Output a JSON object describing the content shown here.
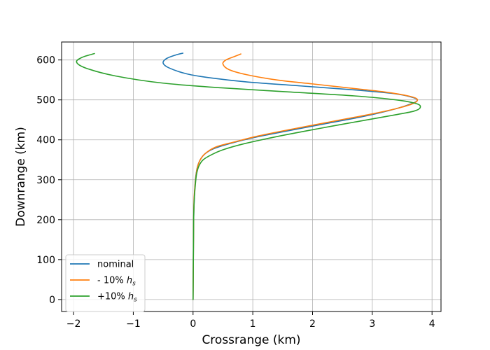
{
  "chart_data": {
    "type": "line",
    "xlabel": "Crossrange (km)",
    "ylabel": "Downrange (km)",
    "xlim": [
      -2.2,
      4.15
    ],
    "ylim": [
      -30,
      645
    ],
    "xticks": [
      -2,
      -1,
      0,
      1,
      2,
      3,
      4
    ],
    "yticks": [
      0,
      100,
      200,
      300,
      400,
      500,
      600
    ],
    "grid": true,
    "legend_position": "lower-left",
    "series": [
      {
        "name": "nominal",
        "label_prefix": "nominal",
        "label_subscript": "",
        "color": "#1f77b4",
        "x": [
          0,
          0.005,
          0.01,
          0.02,
          0.04,
          0.07,
          0.12,
          0.2,
          0.35,
          0.6,
          1.0,
          1.5,
          2.2,
          2.9,
          3.4,
          3.65,
          3.75,
          3.7,
          3.4,
          2.7,
          1.8,
          0.9,
          0.3,
          -0.1,
          -0.4,
          -0.5,
          -0.45,
          -0.3,
          -0.17
        ],
        "y": [
          0,
          100,
          200,
          250,
          300,
          330,
          350,
          365,
          378,
          390,
          405,
          420,
          440,
          460,
          478,
          490,
          498,
          505,
          515,
          525,
          535,
          545,
          555,
          565,
          580,
          592,
          603,
          612,
          617
        ]
      },
      {
        "name": "- 10% h_s",
        "label_prefix": "- 10% ",
        "label_subscript": "s",
        "color": "#ff7f0e",
        "x": [
          0,
          0.005,
          0.01,
          0.02,
          0.05,
          0.08,
          0.14,
          0.24,
          0.4,
          0.7,
          1.1,
          1.7,
          2.4,
          3.0,
          3.45,
          3.7,
          3.75,
          3.6,
          3.2,
          2.6,
          2.0,
          1.4,
          0.9,
          0.6,
          0.5,
          0.55,
          0.7,
          0.8
        ],
        "y": [
          0,
          100,
          200,
          260,
          310,
          335,
          355,
          370,
          383,
          395,
          410,
          428,
          448,
          465,
          480,
          492,
          502,
          510,
          520,
          530,
          540,
          550,
          563,
          576,
          590,
          600,
          609,
          615
        ]
      },
      {
        "name": "+10% h_s",
        "label_prefix": "+10% ",
        "label_subscript": "s",
        "color": "#2ca02c",
        "x": [
          0,
          0.005,
          0.01,
          0.02,
          0.04,
          0.06,
          0.1,
          0.17,
          0.3,
          0.5,
          0.85,
          1.4,
          2.1,
          2.8,
          3.4,
          3.7,
          3.8,
          3.75,
          3.4,
          2.7,
          1.6,
          0.5,
          -0.5,
          -1.3,
          -1.8,
          -1.95,
          -1.85,
          -1.65
        ],
        "y": [
          0,
          100,
          200,
          250,
          290,
          315,
          335,
          350,
          362,
          375,
          390,
          408,
          428,
          447,
          463,
          472,
          480,
          490,
          500,
          510,
          520,
          530,
          542,
          560,
          580,
          595,
          607,
          616
        ]
      }
    ]
  }
}
